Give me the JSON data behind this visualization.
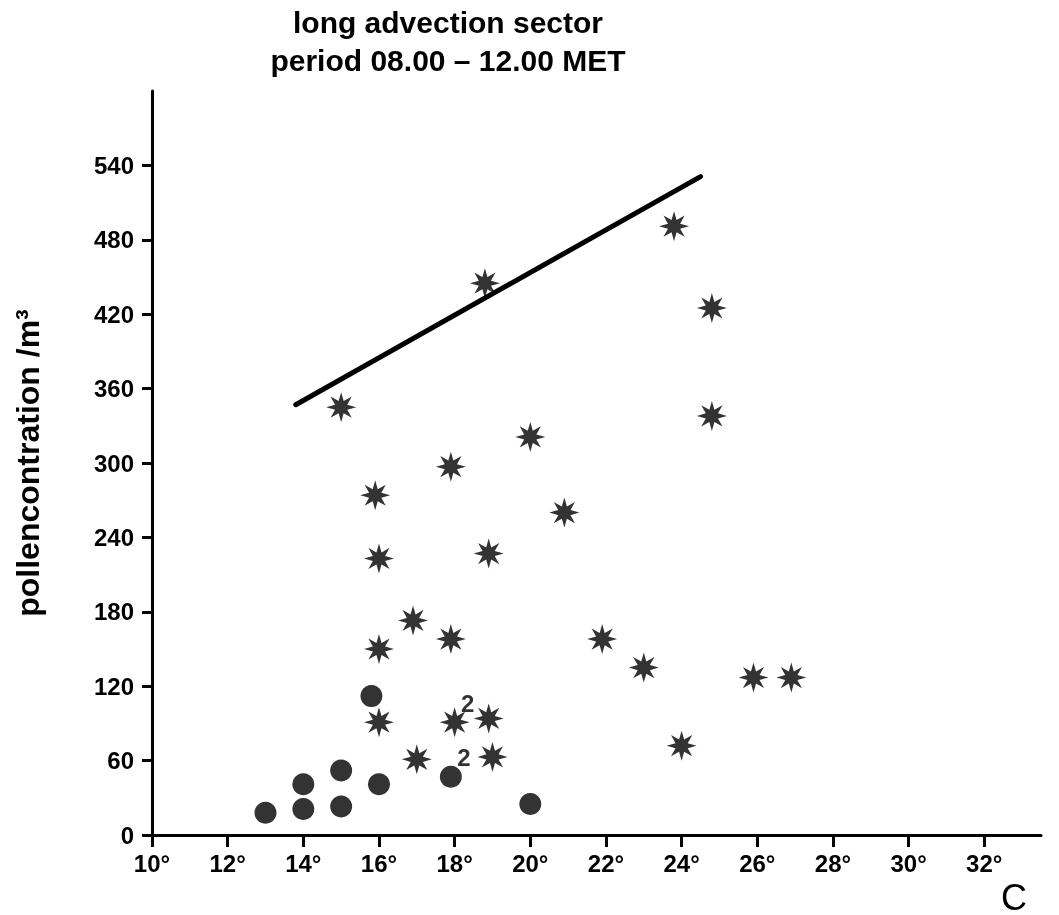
{
  "chart_data": {
    "type": "scatter",
    "title": "long advection sector",
    "subtitle": "period 08.00 – 12.00 MET",
    "xlabel": "C",
    "ylabel": "pollencontration /m³",
    "xlim": [
      10,
      33.5
    ],
    "xticks": [
      {
        "value": 10,
        "label": "10°"
      },
      {
        "value": 12,
        "label": "12°"
      },
      {
        "value": 14,
        "label": "14°"
      },
      {
        "value": 16,
        "label": "16°"
      },
      {
        "value": 18,
        "label": "18°"
      },
      {
        "value": 20,
        "label": "20°"
      },
      {
        "value": 22,
        "label": "22°"
      },
      {
        "value": 24,
        "label": "24°"
      },
      {
        "value": 26,
        "label": "26°"
      },
      {
        "value": 28,
        "label": "28°"
      },
      {
        "value": 30,
        "label": "30°"
      },
      {
        "value": 32,
        "label": "32°"
      }
    ],
    "ylim": [
      0,
      600
    ],
    "yticks": [
      0,
      60,
      120,
      180,
      240,
      300,
      360,
      420,
      480,
      540
    ],
    "grid": false,
    "series": [
      {
        "marker": "star",
        "color": "#000000",
        "x": [
          15,
          18.8,
          23.8,
          24.8,
          24.8,
          17.9,
          20,
          15.9,
          20.9,
          16,
          18.9,
          16.9,
          17.9,
          16,
          21.9,
          23,
          25.9,
          26.9,
          24,
          16,
          18,
          18.9,
          17,
          19
        ],
        "values": [
          345,
          445,
          491,
          425,
          338,
          297,
          321,
          274,
          260,
          223,
          227,
          173,
          158,
          150,
          158,
          135,
          127,
          127,
          72,
          91,
          91,
          94,
          61,
          63
        ]
      },
      {
        "marker": "circle",
        "color": "#000000",
        "x": [
          13,
          14,
          14,
          15,
          15,
          16,
          15.8,
          17.9,
          20
        ],
        "values": [
          18,
          21,
          41,
          23,
          52,
          41,
          112,
          47,
          25
        ]
      },
      {
        "type": "line",
        "marker": "none",
        "line_style": "solid",
        "color": "#000000",
        "x": [
          13.8,
          24.5
        ],
        "values": [
          347,
          531
        ]
      }
    ],
    "annotations": [
      {
        "text": "2",
        "x": 18,
        "y": 91
      },
      {
        "text": "2",
        "x": 17.9,
        "y": 47
      }
    ]
  }
}
